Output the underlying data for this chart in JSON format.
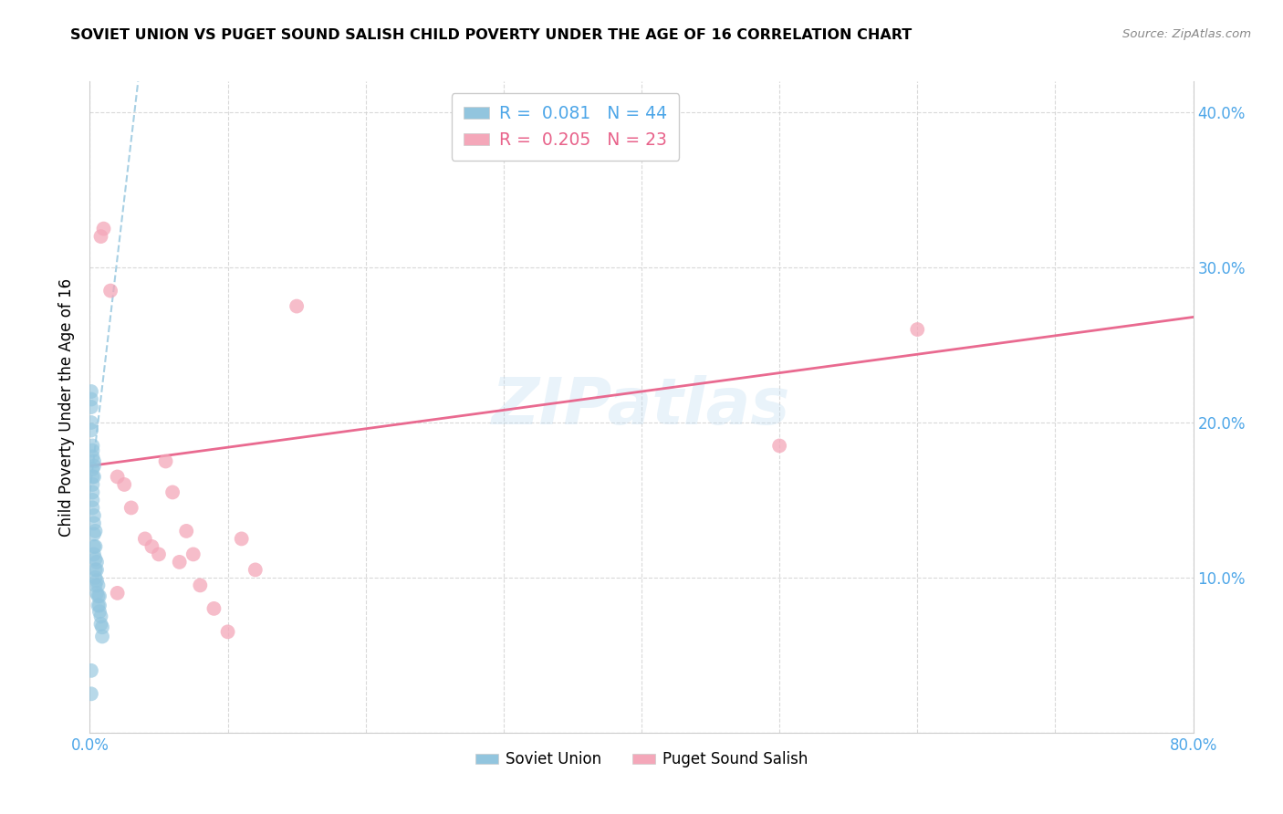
{
  "title": "SOVIET UNION VS PUGET SOUND SALISH CHILD POVERTY UNDER THE AGE OF 16 CORRELATION CHART",
  "source": "Source: ZipAtlas.com",
  "ylabel": "Child Poverty Under the Age of 16",
  "xlim": [
    0.0,
    0.8
  ],
  "ylim": [
    0.0,
    0.42
  ],
  "xticks": [
    0.0,
    0.1,
    0.2,
    0.3,
    0.4,
    0.5,
    0.6,
    0.7,
    0.8
  ],
  "xticklabels": [
    "0.0%",
    "",
    "",
    "",
    "",
    "",
    "",
    "",
    "80.0%"
  ],
  "yticks": [
    0.0,
    0.1,
    0.2,
    0.3,
    0.4
  ],
  "yticklabels_right": [
    "",
    "10.0%",
    "20.0%",
    "30.0%",
    "40.0%"
  ],
  "soviet_x": [
    0.001,
    0.001,
    0.001,
    0.001,
    0.001,
    0.002,
    0.002,
    0.002,
    0.002,
    0.002,
    0.002,
    0.002,
    0.002,
    0.002,
    0.003,
    0.003,
    0.003,
    0.003,
    0.003,
    0.003,
    0.003,
    0.003,
    0.004,
    0.004,
    0.004,
    0.004,
    0.004,
    0.004,
    0.005,
    0.005,
    0.005,
    0.005,
    0.006,
    0.006,
    0.006,
    0.007,
    0.007,
    0.007,
    0.008,
    0.008,
    0.009,
    0.009,
    0.001,
    0.001
  ],
  "soviet_y": [
    0.215,
    0.21,
    0.2,
    0.195,
    0.22,
    0.185,
    0.182,
    0.178,
    0.17,
    0.165,
    0.16,
    0.155,
    0.15,
    0.145,
    0.175,
    0.172,
    0.165,
    0.14,
    0.135,
    0.128,
    0.12,
    0.115,
    0.13,
    0.12,
    0.112,
    0.105,
    0.1,
    0.095,
    0.11,
    0.105,
    0.098,
    0.09,
    0.095,
    0.088,
    0.082,
    0.088,
    0.082,
    0.078,
    0.075,
    0.07,
    0.068,
    0.062,
    0.04,
    0.025
  ],
  "puget_x": [
    0.008,
    0.01,
    0.015,
    0.02,
    0.025,
    0.03,
    0.04,
    0.045,
    0.05,
    0.055,
    0.06,
    0.065,
    0.07,
    0.075,
    0.08,
    0.09,
    0.1,
    0.11,
    0.12,
    0.15,
    0.5,
    0.6,
    0.02
  ],
  "puget_y": [
    0.32,
    0.325,
    0.285,
    0.165,
    0.16,
    0.145,
    0.125,
    0.12,
    0.115,
    0.175,
    0.155,
    0.11,
    0.13,
    0.115,
    0.095,
    0.08,
    0.065,
    0.125,
    0.105,
    0.275,
    0.185,
    0.26,
    0.09
  ],
  "soviet_R": 0.081,
  "soviet_N": 44,
  "puget_R": 0.205,
  "puget_N": 23,
  "soviet_color": "#92c5de",
  "puget_color": "#f4a7b9",
  "soviet_line_color": "#92c5de",
  "puget_line_color": "#e8628a",
  "su_trend_x0": 0.0,
  "su_trend_y0": 0.155,
  "su_trend_x1": 0.035,
  "su_trend_y1": 0.42,
  "ps_trend_x0": 0.0,
  "ps_trend_y0": 0.172,
  "ps_trend_x1": 0.8,
  "ps_trend_y1": 0.268,
  "watermark": "ZIPatlas",
  "background_color": "#ffffff",
  "grid_color": "#d0d0d0"
}
